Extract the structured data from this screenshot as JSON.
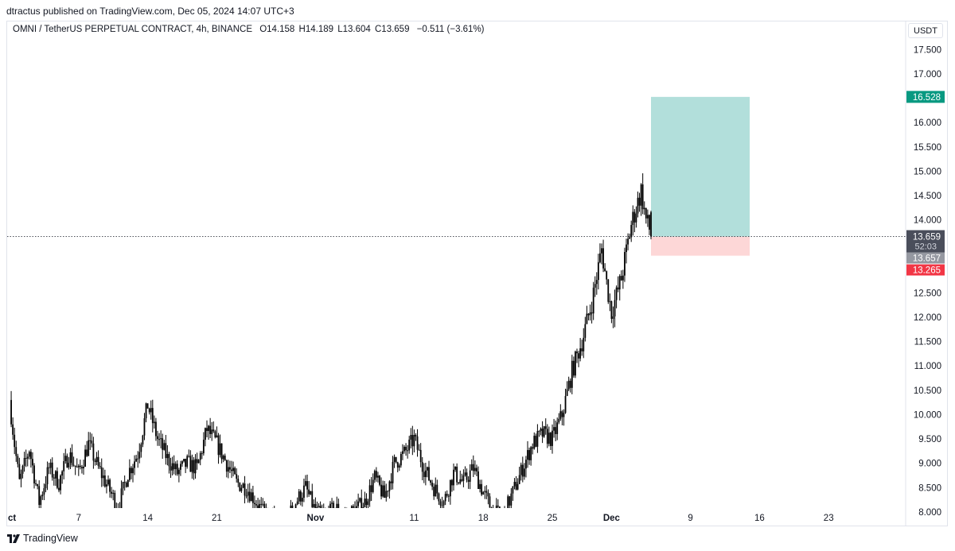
{
  "header": {
    "publish_line": "dtractus published on TradingView.com, Dec 05, 2024 14:07 UTC+3"
  },
  "legend": {
    "symbol": "OMNI / TetherUS PERPETUAL CONTRACT, 4h, BINANCE",
    "open": "O14.158",
    "high": "H14.189",
    "low": "L13.604",
    "close": "C13.659",
    "change": "−0.511 (−3.61%)"
  },
  "price_scale": {
    "unit": "USDT"
  },
  "footer": {
    "brand": "TradingView"
  },
  "colors": {
    "candle": "#000000",
    "target_zone": "#b2dfdb",
    "stop_zone": "#fdd7d7",
    "target_badge": "#089981",
    "stop_badge": "#f23645",
    "last_price_badge": "#4a4e5b",
    "prev_badge": "#9598a1"
  },
  "chart_data": {
    "type": "candlestick",
    "interval": "4h",
    "ylim": [
      7.9,
      17.8
    ],
    "y_ticks": [
      "17.500",
      "17.000",
      "16.000",
      "15.500",
      "15.000",
      "14.500",
      "14.000",
      "12.500",
      "12.000",
      "11.500",
      "11.000",
      "10.500",
      "10.000",
      "9.500",
      "9.000",
      "8.500",
      "8.000"
    ],
    "x_ticks": [
      "ct",
      "7",
      "14",
      "21",
      "Nov",
      "11",
      "18",
      "25",
      "Dec",
      "9",
      "16",
      "23"
    ],
    "x_tick_days": [
      0,
      7,
      14,
      21,
      31,
      41,
      48,
      55,
      61,
      69,
      76,
      83
    ],
    "close_path": [
      [
        0,
        10.3
      ],
      [
        0.5,
        9.4
      ],
      [
        1,
        8.6
      ],
      [
        2,
        9.3
      ],
      [
        3,
        8.2
      ],
      [
        4,
        8.9
      ],
      [
        5,
        8.6
      ],
      [
        6,
        9.2
      ],
      [
        7,
        8.8
      ],
      [
        8,
        9.4
      ],
      [
        9,
        8.9
      ],
      [
        10,
        8.5
      ],
      [
        11,
        8.1
      ],
      [
        12,
        8.8
      ],
      [
        13,
        9.2
      ],
      [
        14,
        10.2
      ],
      [
        15,
        9.5
      ],
      [
        16,
        9.1
      ],
      [
        17,
        8.8
      ],
      [
        18,
        9.0
      ],
      [
        19,
        8.9
      ],
      [
        20,
        9.7
      ],
      [
        21,
        9.4
      ],
      [
        22,
        9.0
      ],
      [
        23,
        8.6
      ],
      [
        24,
        8.5
      ],
      [
        25,
        8.2
      ],
      [
        26,
        7.9
      ],
      [
        28,
        7.8
      ],
      [
        29,
        8.2
      ],
      [
        30,
        8.5
      ],
      [
        31,
        8.0
      ],
      [
        32,
        7.9
      ],
      [
        33,
        8.1
      ],
      [
        34,
        7.9
      ],
      [
        36,
        8.2
      ],
      [
        37,
        8.7
      ],
      [
        38,
        8.3
      ],
      [
        39,
        9.0
      ],
      [
        40,
        9.2
      ],
      [
        41,
        9.5
      ],
      [
        42,
        8.9
      ],
      [
        43,
        8.5
      ],
      [
        44,
        8.2
      ],
      [
        45,
        8.8
      ],
      [
        46,
        8.6
      ],
      [
        47,
        8.9
      ],
      [
        48,
        8.4
      ],
      [
        49,
        8.0
      ],
      [
        50,
        7.9
      ],
      [
        51,
        8.4
      ],
      [
        52,
        8.9
      ],
      [
        53,
        9.4
      ],
      [
        54,
        9.6
      ],
      [
        55,
        9.5
      ],
      [
        56,
        10.0
      ],
      [
        57,
        10.9
      ],
      [
        58,
        11.5
      ],
      [
        59,
        12.3
      ],
      [
        60,
        13.4
      ],
      [
        60.5,
        12.7
      ],
      [
        61,
        12.1
      ],
      [
        62,
        12.8
      ],
      [
        63,
        13.9
      ],
      [
        64,
        14.6
      ],
      [
        64.5,
        14.0
      ],
      [
        65,
        13.7
      ]
    ],
    "last_candle": {
      "open": 14.158,
      "high": 14.189,
      "low": 13.604,
      "close": 13.659
    },
    "position": {
      "type": "long",
      "entry": 13.657,
      "target": 16.528,
      "stop": 13.265,
      "start_day": 65,
      "end_day": 75
    },
    "last_price": "13.659",
    "countdown": "52:03",
    "prev_close_label": "13.657",
    "target_label": "16.528",
    "stop_label": "13.265"
  }
}
